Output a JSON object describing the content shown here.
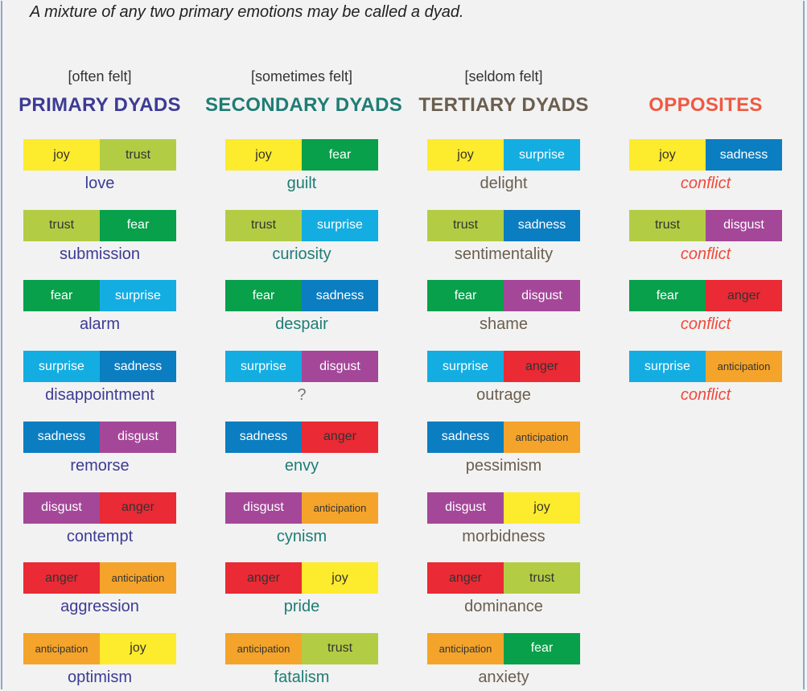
{
  "intro_text": "A mixture of any two primary emotions may be called a dyad.",
  "emotion_colors": {
    "joy": "#fdeb2d",
    "trust": "#b2cd44",
    "fear": "#08a04a",
    "surprise": "#14ade2",
    "sadness": "#0b7dc1",
    "disgust": "#a44799",
    "anger": "#ea2a34",
    "anticipation": "#f4a42b"
  },
  "emotion_text_colors": {
    "joy": "#333333",
    "trust": "#333333",
    "fear": "#ffffff",
    "surprise": "#ffffff",
    "sadness": "#ffffff",
    "disgust": "#ffffff",
    "anger": "#333333",
    "anticipation": "#333333"
  },
  "columns": [
    {
      "frequency": "[often felt]",
      "heading": "PRIMARY DYADS",
      "heading_color": "#3d3b95",
      "name_color": "#3d3b95",
      "italic_names": false,
      "dyads": [
        {
          "a": "joy",
          "b": "trust",
          "name": "love"
        },
        {
          "a": "trust",
          "b": "fear",
          "name": "submission"
        },
        {
          "a": "fear",
          "b": "surprise",
          "name": "alarm"
        },
        {
          "a": "surprise",
          "b": "sadness",
          "name": "disappointment"
        },
        {
          "a": "sadness",
          "b": "disgust",
          "name": "remorse"
        },
        {
          "a": "disgust",
          "b": "anger",
          "name": "contempt"
        },
        {
          "a": "anger",
          "b": "anticipation",
          "name": "aggression"
        },
        {
          "a": "anticipation",
          "b": "joy",
          "name": "optimism"
        }
      ]
    },
    {
      "frequency": "[sometimes felt]",
      "heading": "SECONDARY DYADS",
      "heading_color": "#1e7d75",
      "name_color": "#1e7d75",
      "italic_names": false,
      "dyads": [
        {
          "a": "joy",
          "b": "fear",
          "name": "guilt"
        },
        {
          "a": "trust",
          "b": "surprise",
          "name": "curiosity"
        },
        {
          "a": "fear",
          "b": "sadness",
          "name": "despair"
        },
        {
          "a": "surprise",
          "b": "disgust",
          "name": "?"
        },
        {
          "a": "sadness",
          "b": "anger",
          "name": "envy"
        },
        {
          "a": "disgust",
          "b": "anticipation",
          "name": "cynism"
        },
        {
          "a": "anger",
          "b": "joy",
          "name": "pride"
        },
        {
          "a": "anticipation",
          "b": "trust",
          "name": "fatalism"
        }
      ]
    },
    {
      "frequency": "[seldom felt]",
      "heading": "TERTIARY DYADS",
      "heading_color": "#6b5e4e",
      "name_color": "#6b5e4e",
      "italic_names": false,
      "dyads": [
        {
          "a": "joy",
          "b": "surprise",
          "name": "delight"
        },
        {
          "a": "trust",
          "b": "sadness",
          "name": "sentimentality"
        },
        {
          "a": "fear",
          "b": "disgust",
          "name": "shame"
        },
        {
          "a": "surprise",
          "b": "anger",
          "name": "outrage"
        },
        {
          "a": "sadness",
          "b": "anticipation",
          "name": "pessimism"
        },
        {
          "a": "disgust",
          "b": "joy",
          "name": "morbidness"
        },
        {
          "a": "anger",
          "b": "trust",
          "name": "dominance"
        },
        {
          "a": "anticipation",
          "b": "fear",
          "name": "anxiety"
        }
      ]
    },
    {
      "frequency": "",
      "heading": "OPPOSITES",
      "heading_color": "#ee5a41",
      "name_color": "#ee4a3b",
      "italic_names": true,
      "dyads": [
        {
          "a": "joy",
          "b": "sadness",
          "name": "conflict"
        },
        {
          "a": "trust",
          "b": "disgust",
          "name": "conflict"
        },
        {
          "a": "fear",
          "b": "anger",
          "name": "conflict"
        },
        {
          "a": "surprise",
          "b": "anticipation",
          "name": "conflict"
        }
      ]
    }
  ]
}
